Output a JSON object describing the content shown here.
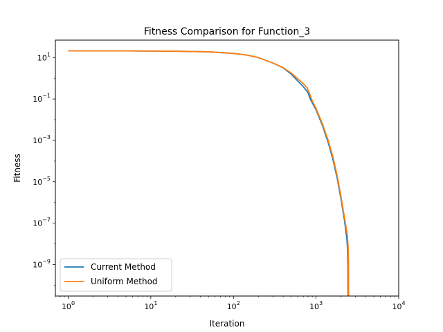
{
  "chart_data": {
    "type": "line",
    "title": "Fitness Comparison for Function_3",
    "xlabel": "Iteration",
    "ylabel": "Fitness",
    "xscale": "log",
    "yscale": "log",
    "xlim": [
      0.7,
      10000
    ],
    "ylim": [
      3e-11,
      70
    ],
    "xticks": [
      {
        "value": 1,
        "base": "10",
        "exp": "0"
      },
      {
        "value": 10,
        "base": "10",
        "exp": "1"
      },
      {
        "value": 100,
        "base": "10",
        "exp": "2"
      },
      {
        "value": 1000,
        "base": "10",
        "exp": "3"
      },
      {
        "value": 10000,
        "base": "10",
        "exp": "4"
      }
    ],
    "yticks": [
      {
        "value": 1e-09,
        "base": "10",
        "exp": "−9"
      },
      {
        "value": 1e-07,
        "base": "10",
        "exp": "−7"
      },
      {
        "value": 1e-05,
        "base": "10",
        "exp": "−5"
      },
      {
        "value": 0.001,
        "base": "10",
        "exp": "−3"
      },
      {
        "value": 0.1,
        "base": "10",
        "exp": "−1"
      },
      {
        "value": 10,
        "base": "10",
        "exp": "1"
      }
    ],
    "grid": false,
    "legend_position": "lower-left",
    "series": [
      {
        "name": "Current Method",
        "color": "#1f77b4",
        "points": [
          [
            1,
            21
          ],
          [
            5,
            21
          ],
          [
            10,
            20.7
          ],
          [
            20,
            20.3
          ],
          [
            50,
            19
          ],
          [
            100,
            16
          ],
          [
            150,
            13
          ],
          [
            200,
            10
          ],
          [
            300,
            5.5
          ],
          [
            400,
            3.2
          ],
          [
            500,
            1.6
          ],
          [
            600,
            0.75
          ],
          [
            700,
            0.4
          ],
          [
            800,
            0.2
          ],
          [
            850,
            0.1
          ],
          [
            900,
            0.065
          ],
          [
            1000,
            0.03
          ],
          [
            1200,
            0.005
          ],
          [
            1400,
            0.0008
          ],
          [
            1600,
            0.00012
          ],
          [
            1800,
            1.5e-05
          ],
          [
            2000,
            1.5e-06
          ],
          [
            2200,
            1.5e-07
          ],
          [
            2350,
            2e-08
          ],
          [
            2400,
            6e-09
          ],
          [
            2430,
            1e-09
          ],
          [
            2440,
            3e-11
          ]
        ]
      },
      {
        "name": "Uniform Method",
        "color": "#ff7f0e",
        "points": [
          [
            1,
            21
          ],
          [
            5,
            21
          ],
          [
            10,
            20.7
          ],
          [
            20,
            20.3
          ],
          [
            50,
            19
          ],
          [
            100,
            16
          ],
          [
            150,
            13
          ],
          [
            200,
            10
          ],
          [
            300,
            5.5
          ],
          [
            400,
            3.3
          ],
          [
            500,
            1.8
          ],
          [
            600,
            0.95
          ],
          [
            700,
            0.55
          ],
          [
            780,
            0.35
          ],
          [
            850,
            0.15
          ],
          [
            900,
            0.08
          ],
          [
            1000,
            0.035
          ],
          [
            1200,
            0.006
          ],
          [
            1400,
            0.001
          ],
          [
            1600,
            0.00016
          ],
          [
            1800,
            2e-05
          ],
          [
            2000,
            2e-06
          ],
          [
            2200,
            2e-07
          ],
          [
            2380,
            3e-08
          ],
          [
            2440,
            8e-09
          ],
          [
            2470,
            1.5e-09
          ],
          [
            2480,
            3e-11
          ]
        ]
      }
    ]
  }
}
